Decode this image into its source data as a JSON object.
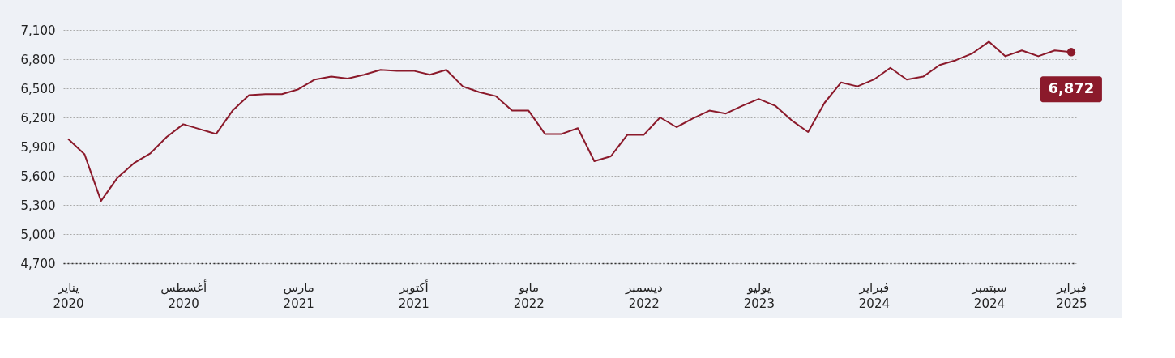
{
  "chart_data": {
    "type": "line",
    "categories": [
      "يناير\n2020",
      null,
      null,
      null,
      null,
      null,
      null,
      "أغسطس\n2020",
      null,
      null,
      null,
      null,
      null,
      null,
      "مارس\n2021",
      null,
      null,
      null,
      null,
      null,
      null,
      "أكتوبر\n2021",
      null,
      null,
      null,
      null,
      null,
      null,
      "مايو\n2022",
      null,
      null,
      null,
      null,
      null,
      null,
      "ديسمبر\n2022",
      null,
      null,
      null,
      null,
      null,
      null,
      "يوليو\n2023",
      null,
      null,
      null,
      null,
      null,
      null,
      "فبراير\n2024",
      null,
      null,
      null,
      null,
      null,
      null,
      "سبتمبر\n2024",
      null,
      null,
      null,
      null,
      "فبراير\n2025"
    ],
    "series": [
      {
        "color": "#8b1a2b",
        "values": [
          5980,
          5820,
          5340,
          5580,
          5730,
          5830,
          6000,
          6130,
          6080,
          6030,
          6270,
          6430,
          6440,
          6440,
          6490,
          6590,
          6620,
          6600,
          6640,
          6690,
          6680,
          6680,
          6640,
          6690,
          6520,
          6460,
          6420,
          6270,
          6270,
          6030,
          6030,
          6090,
          5750,
          5800,
          6020,
          6020,
          6200,
          6100,
          6190,
          6270,
          6240,
          6320,
          6390,
          6320,
          6170,
          6050,
          6350,
          6560,
          6520,
          6590,
          6710,
          6590,
          6620,
          6740,
          6790,
          6860,
          6980,
          6830,
          6890,
          6830,
          6890,
          6872
        ],
        "value_labels": [
          null,
          null,
          null,
          null,
          null,
          null,
          null,
          null,
          null,
          null,
          null,
          null,
          null,
          null,
          null,
          null,
          null,
          null,
          null,
          null,
          null,
          null,
          null,
          null,
          null,
          null,
          null,
          null,
          null,
          null,
          null,
          null,
          null,
          null,
          null,
          null,
          null,
          null,
          null,
          null,
          null,
          null,
          null,
          null,
          null,
          null,
          null,
          null,
          null,
          null,
          null,
          null,
          null,
          null,
          null,
          null,
          null,
          null,
          null,
          null,
          null,
          "6,872"
        ]
      }
    ],
    "ylim": [
      4700,
      7100
    ],
    "yticks": [
      {
        "value": 4700,
        "label": "4,700"
      },
      {
        "value": 5000,
        "label": "5,000"
      },
      {
        "value": 5300,
        "label": "5,300"
      },
      {
        "value": 5600,
        "label": "5,600"
      },
      {
        "value": 5900,
        "label": "5,900"
      },
      {
        "value": 6200,
        "label": "6,200"
      },
      {
        "value": 6500,
        "label": "6,500"
      },
      {
        "value": 6800,
        "label": "6,800"
      },
      {
        "value": 7100,
        "label": "7,100"
      }
    ],
    "grid": "y",
    "line_style": "solid",
    "marker": "none"
  }
}
